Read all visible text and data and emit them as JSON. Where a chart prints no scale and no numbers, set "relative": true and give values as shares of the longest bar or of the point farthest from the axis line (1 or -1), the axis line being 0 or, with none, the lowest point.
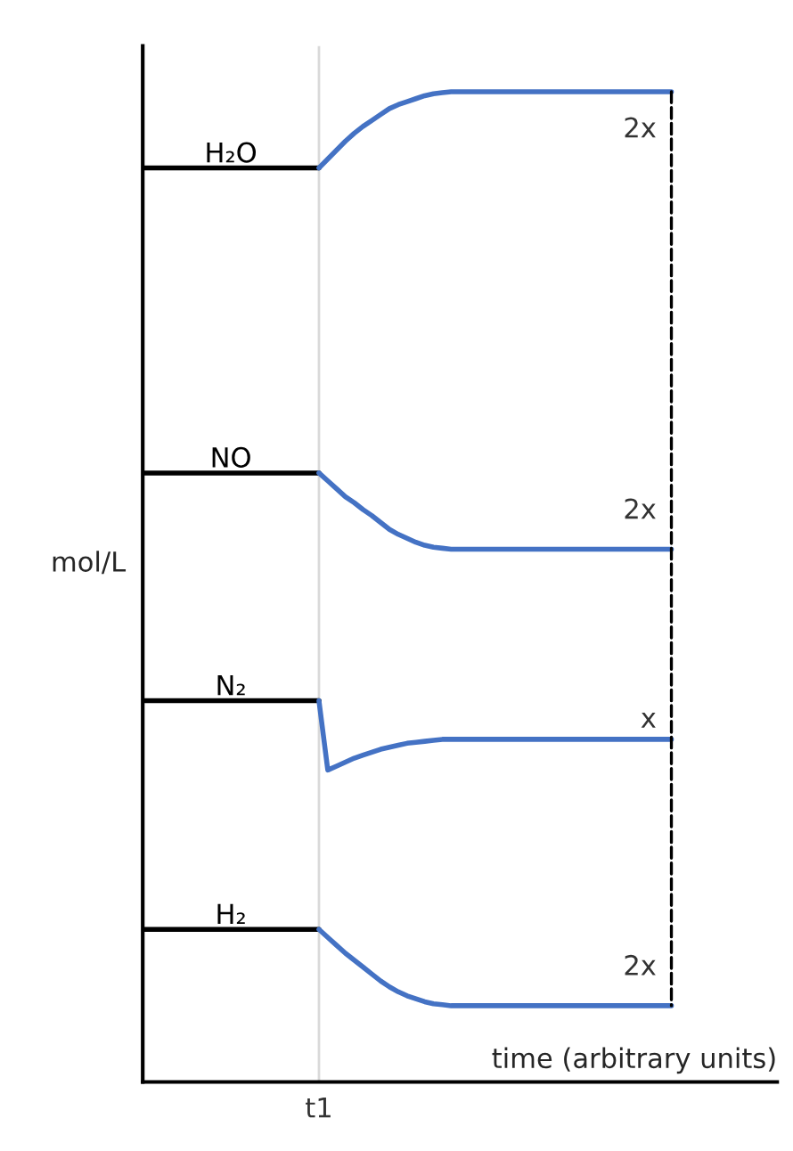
{
  "chart_data": {
    "type": "line",
    "relative": true,
    "xlabel": "time (arbitrary units)",
    "ylabel": "mol/L",
    "categories": [
      null,
      null,
      null,
      null,
      null,
      null,
      null,
      null,
      null,
      null,
      null,
      null,
      null,
      null,
      null,
      null,
      null,
      null,
      null,
      null,
      null,
      null,
      null,
      null,
      null,
      null,
      null,
      null,
      null,
      null,
      null,
      null,
      null,
      null,
      null,
      null,
      null,
      null,
      null,
      null,
      null,
      null,
      null,
      null,
      null,
      null,
      null,
      null,
      null,
      null,
      null,
      null,
      null,
      null,
      null,
      null,
      null,
      null,
      null,
      null,
      null
    ],
    "marker": "none",
    "line_style": "solid",
    "series": [
      {
        "name": "H₂O",
        "color": "#000000",
        "values": [
          0.923,
          0.923,
          0.923,
          0.923,
          0.923,
          0.923,
          0.923,
          0.923,
          0.923,
          0.923,
          0.923,
          0.923,
          0.923,
          0.923,
          0.923,
          0.923,
          0.923,
          0.923,
          0.923,
          0.923,
          0.923,
          null,
          null,
          null,
          null,
          null,
          null,
          null,
          null,
          null,
          null,
          null,
          null,
          null,
          null,
          null,
          null,
          null,
          null,
          null,
          null,
          null,
          null,
          null,
          null,
          null,
          null,
          null,
          null,
          null,
          null,
          null,
          null,
          null,
          null,
          null,
          null,
          null,
          null,
          null,
          null
        ]
      },
      {
        "color": "#4472c4",
        "values": [
          null,
          null,
          null,
          null,
          null,
          null,
          null,
          null,
          null,
          null,
          null,
          null,
          null,
          null,
          null,
          null,
          null,
          null,
          null,
          null,
          0.923,
          0.932,
          0.941,
          0.95,
          0.958,
          0.965,
          0.971,
          0.977,
          0.983,
          0.987,
          0.99,
          0.993,
          0.996,
          0.998,
          0.999,
          1,
          1,
          1,
          1,
          1,
          1,
          1,
          1,
          1,
          1,
          1,
          1,
          1,
          1,
          1,
          1,
          1,
          1,
          1,
          1,
          1,
          1,
          1,
          1,
          1,
          1
        ]
      },
      {
        "name": "NO",
        "color": "#000000",
        "values": [
          0.615,
          0.615,
          0.615,
          0.615,
          0.615,
          0.615,
          0.615,
          0.615,
          0.615,
          0.615,
          0.615,
          0.615,
          0.615,
          0.615,
          0.615,
          0.615,
          0.615,
          0.615,
          0.615,
          0.615,
          0.615,
          null,
          null,
          null,
          null,
          null,
          null,
          null,
          null,
          null,
          null,
          null,
          null,
          null,
          null,
          null,
          null,
          null,
          null,
          null,
          null,
          null,
          null,
          null,
          null,
          null,
          null,
          null,
          null,
          null,
          null,
          null,
          null,
          null,
          null,
          null,
          null,
          null,
          null,
          null,
          null
        ]
      },
      {
        "color": "#4472c4",
        "values": [
          null,
          null,
          null,
          null,
          null,
          null,
          null,
          null,
          null,
          null,
          null,
          null,
          null,
          null,
          null,
          null,
          null,
          null,
          null,
          null,
          0.615,
          0.607,
          0.599,
          0.591,
          0.585,
          0.578,
          0.572,
          0.565,
          0.558,
          0.553,
          0.549,
          0.545,
          0.542,
          0.54,
          0.539,
          0.538,
          0.538,
          0.538,
          0.538,
          0.538,
          0.538,
          0.538,
          0.538,
          0.538,
          0.538,
          0.538,
          0.538,
          0.538,
          0.538,
          0.538,
          0.538,
          0.538,
          0.538,
          0.538,
          0.538,
          0.538,
          0.538,
          0.538,
          0.538,
          0.538,
          0.538
        ]
      },
      {
        "name": "N₂",
        "color": "#000000",
        "values": [
          0.385,
          0.385,
          0.385,
          0.385,
          0.385,
          0.385,
          0.385,
          0.385,
          0.385,
          0.385,
          0.385,
          0.385,
          0.385,
          0.385,
          0.385,
          0.385,
          0.385,
          0.385,
          0.385,
          0.385,
          0.385,
          null,
          null,
          null,
          null,
          null,
          null,
          null,
          null,
          null,
          null,
          null,
          null,
          null,
          null,
          null,
          null,
          null,
          null,
          null,
          null,
          null,
          null,
          null,
          null,
          null,
          null,
          null,
          null,
          null,
          null,
          null,
          null,
          null,
          null,
          null,
          null,
          null,
          null,
          null,
          null
        ]
      },
      {
        "color": "#4472c4",
        "values": [
          null,
          null,
          null,
          null,
          null,
          null,
          null,
          null,
          null,
          null,
          null,
          null,
          null,
          null,
          null,
          null,
          null,
          null,
          null,
          null,
          0.385,
          0.315,
          0.319,
          0.323,
          0.327,
          0.33,
          0.333,
          0.336,
          0.338,
          0.34,
          0.342,
          0.343,
          0.344,
          0.345,
          0.346,
          0.346,
          0.346,
          0.346,
          0.346,
          0.346,
          0.346,
          0.346,
          0.346,
          0.346,
          0.346,
          0.346,
          0.346,
          0.346,
          0.346,
          0.346,
          0.346,
          0.346,
          0.346,
          0.346,
          0.346,
          0.346,
          0.346,
          0.346,
          0.346,
          0.346,
          0.346
        ]
      },
      {
        "name": "H₂",
        "color": "#000000",
        "values": [
          0.154,
          0.154,
          0.154,
          0.154,
          0.154,
          0.154,
          0.154,
          0.154,
          0.154,
          0.154,
          0.154,
          0.154,
          0.154,
          0.154,
          0.154,
          0.154,
          0.154,
          0.154,
          0.154,
          0.154,
          0.154,
          null,
          null,
          null,
          null,
          null,
          null,
          null,
          null,
          null,
          null,
          null,
          null,
          null,
          null,
          null,
          null,
          null,
          null,
          null,
          null,
          null,
          null,
          null,
          null,
          null,
          null,
          null,
          null,
          null,
          null,
          null,
          null,
          null,
          null,
          null,
          null,
          null,
          null,
          null,
          null
        ]
      },
      {
        "color": "#4472c4",
        "values": [
          null,
          null,
          null,
          null,
          null,
          null,
          null,
          null,
          null,
          null,
          null,
          null,
          null,
          null,
          null,
          null,
          null,
          null,
          null,
          null,
          0.154,
          0.146,
          0.138,
          0.13,
          0.123,
          0.116,
          0.109,
          0.102,
          0.096,
          0.091,
          0.087,
          0.084,
          0.081,
          0.079,
          0.078,
          0.077,
          0.077,
          0.077,
          0.077,
          0.077,
          0.077,
          0.077,
          0.077,
          0.077,
          0.077,
          0.077,
          0.077,
          0.077,
          0.077,
          0.077,
          0.077,
          0.077,
          0.077,
          0.077,
          0.077,
          0.077,
          0.077,
          0.077,
          0.077,
          0.077,
          0.077
        ]
      }
    ],
    "annotations": [
      "2x",
      "2x",
      "x",
      "2x",
      "t1"
    ]
  }
}
